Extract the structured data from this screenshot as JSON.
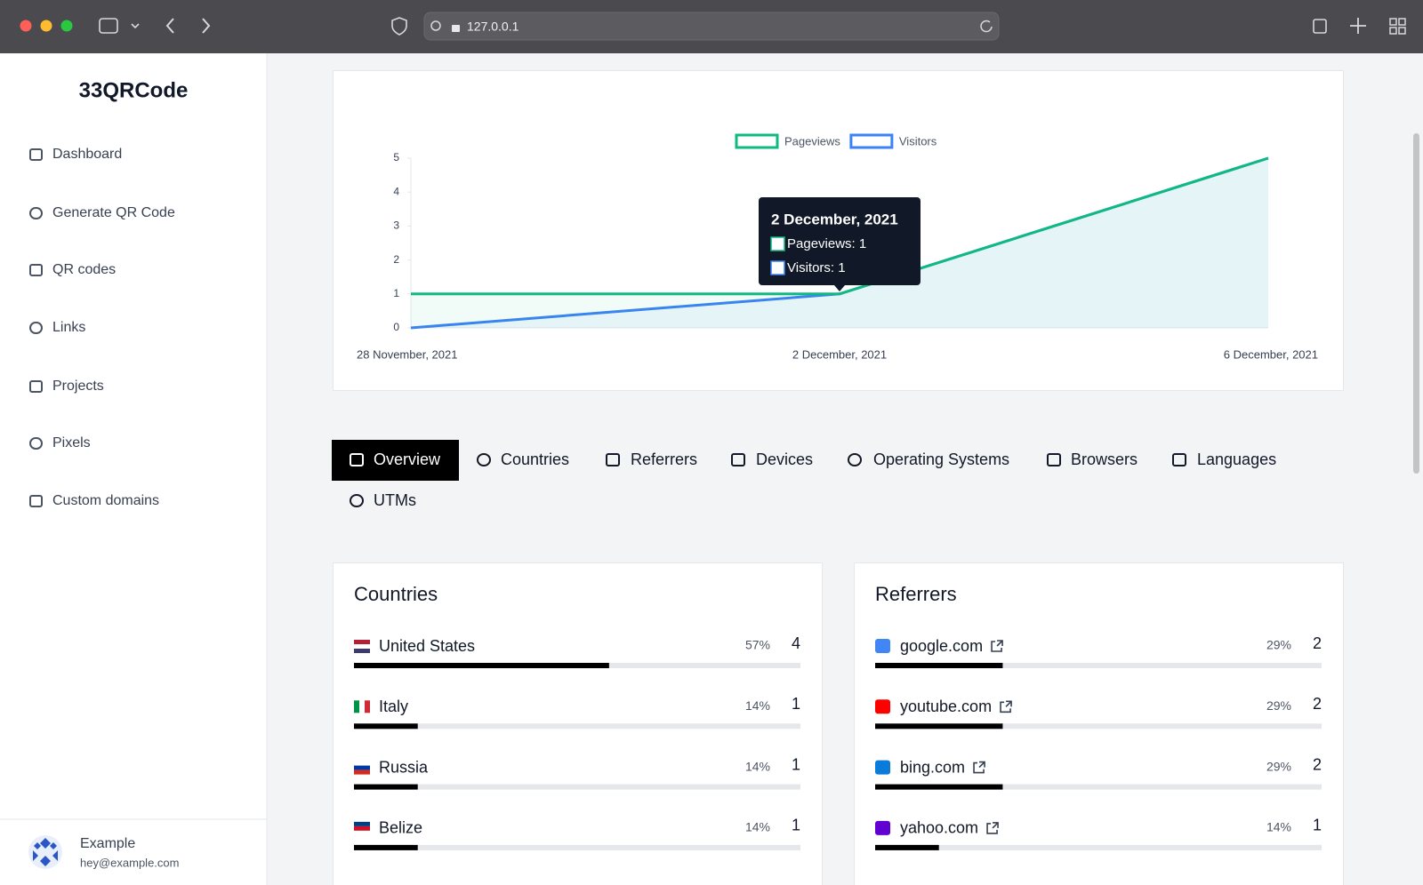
{
  "browser": {
    "url": "127.0.0.1"
  },
  "sidebar": {
    "brand": "33QRCode",
    "nav": [
      "Dashboard",
      "Generate QR Code",
      "QR codes",
      "Links",
      "Projects",
      "Pixels",
      "Custom domains"
    ],
    "user": {
      "name": "Example",
      "email": "hey@example.com"
    }
  },
  "chart_data": {
    "type": "line",
    "categories": [
      "28 November, 2021",
      "2 December, 2021",
      "6 December, 2021"
    ],
    "series": [
      {
        "name": "Pageviews",
        "color": "#10b981",
        "values": [
          1,
          1,
          5
        ]
      },
      {
        "name": "Visitors",
        "color": "#3b82f6",
        "values": [
          0,
          1,
          5
        ]
      }
    ],
    "ylim": [
      0,
      5
    ],
    "yticks": [
      0,
      1,
      2,
      3,
      4,
      5
    ],
    "legend": "top",
    "tooltip": {
      "title": "2 December, 2021",
      "lines": [
        "Pageviews: 1",
        "Visitors: 1"
      ]
    }
  },
  "tabs": [
    "Overview",
    "Countries",
    "Referrers",
    "Devices",
    "Operating Systems",
    "Browsers",
    "Languages",
    "UTMs"
  ],
  "panels": [
    {
      "title": "Countries",
      "rows": [
        {
          "label": "United States",
          "percent": "57%",
          "count": 4
        },
        {
          "label": "Italy",
          "percent": "14%",
          "count": 1
        },
        {
          "label": "Russia",
          "percent": "14%",
          "count": 1
        },
        {
          "label": "Belize",
          "percent": "14%",
          "count": 1
        }
      ]
    },
    {
      "title": "Referrers",
      "rows": [
        {
          "label": "google.com",
          "percent": "29%",
          "count": 2
        },
        {
          "label": "youtube.com",
          "percent": "29%",
          "count": 2
        },
        {
          "label": "bing.com",
          "percent": "29%",
          "count": 2
        },
        {
          "label": "yahoo.com",
          "percent": "14%",
          "count": 1
        }
      ]
    }
  ]
}
